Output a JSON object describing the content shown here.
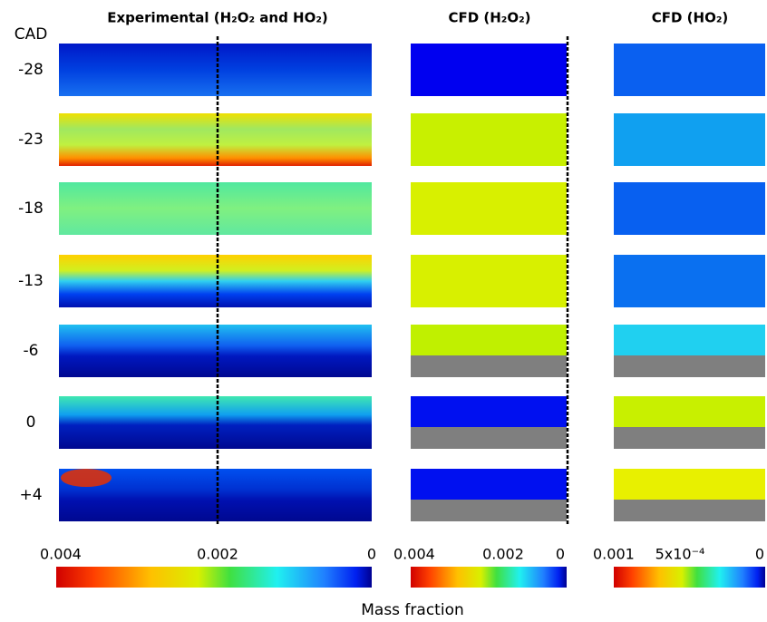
{
  "titles": [
    "Experimental (H₂O₂ and HO₂)",
    "CFD (H₂O₂)",
    "CFD (HO₂)"
  ],
  "row_header": "CAD",
  "rows": [
    "-28",
    "-23",
    "-18",
    "-13",
    "-6",
    "0",
    "+4"
  ],
  "colorbars": [
    {
      "ticks": [
        "0.004",
        "0.002",
        "0"
      ]
    },
    {
      "ticks": [
        "0.004",
        "0.002",
        "0"
      ]
    },
    {
      "ticks": [
        "0.001",
        "5x10⁻⁴",
        "0"
      ]
    }
  ],
  "colorbar_label": "Mass fraction"
}
